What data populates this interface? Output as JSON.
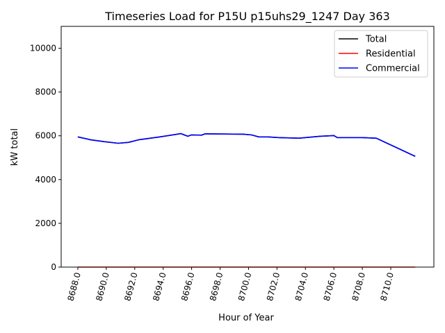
{
  "chart_data": {
    "type": "line",
    "title": "Timeseries Load for P15U p15uhs29_1247  Day 363",
    "xlabel": "Hour of Year",
    "ylabel": "kW total",
    "xlim": [
      8686.83,
      8713.03
    ],
    "ylim": [
      0,
      11000
    ],
    "grid": false,
    "legend_position": "top-right",
    "xticks": [
      8688,
      8690,
      8692,
      8694,
      8696,
      8698,
      8700,
      8702,
      8704,
      8706,
      8708,
      8710
    ],
    "xtick_labels": [
      "8688.0",
      "8690.0",
      "8692.0",
      "8694.0",
      "8696.0",
      "8698.0",
      "8700.0",
      "8702.0",
      "8704.0",
      "8706.0",
      "8708.0",
      "8710.0"
    ],
    "yticks": [
      0,
      2000,
      4000,
      6000,
      8000,
      10000
    ],
    "ytick_labels": [
      "0",
      "2000",
      "4000",
      "6000",
      "8000",
      "10000"
    ],
    "x": [
      8688.0,
      8688.88,
      8689.86,
      8690.84,
      8691.57,
      8692.3,
      8693.77,
      8695.24,
      8695.73,
      8695.97,
      8696.7,
      8696.95,
      8699.64,
      8700.22,
      8700.71,
      8701.35,
      8702.08,
      8703.55,
      8705.02,
      8706.0,
      8706.24,
      8707.95,
      8708.98,
      8711.72
    ],
    "series": [
      {
        "name": "Total",
        "color": "#000000",
        "values": [
          5950,
          5820,
          5730,
          5660,
          5700,
          5820,
          5950,
          6100,
          5980,
          6040,
          6030,
          6090,
          6075,
          6040,
          5950,
          5950,
          5920,
          5890,
          5980,
          6010,
          5920,
          5920,
          5890,
          5060
        ]
      },
      {
        "name": "Residential",
        "color": "#ff0000",
        "values": [
          0,
          0,
          0,
          0,
          0,
          0,
          0,
          0,
          0,
          0,
          0,
          0,
          0,
          0,
          0,
          0,
          0,
          0,
          0,
          0,
          0,
          0,
          0,
          0
        ]
      },
      {
        "name": "Commercial",
        "color": "#0000ff",
        "values": [
          5950,
          5820,
          5730,
          5660,
          5700,
          5820,
          5950,
          6100,
          5980,
          6040,
          6030,
          6090,
          6075,
          6040,
          5950,
          5950,
          5920,
          5890,
          5980,
          6010,
          5920,
          5920,
          5890,
          5060
        ]
      }
    ]
  }
}
